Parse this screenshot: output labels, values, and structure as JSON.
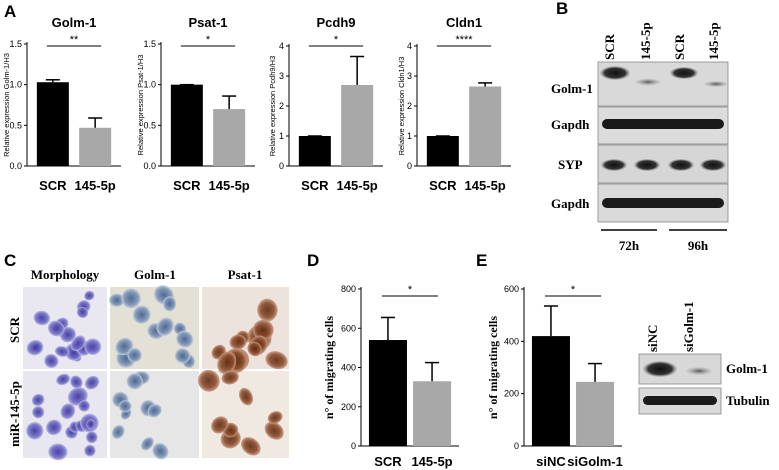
{
  "panel_letters": [
    "A",
    "B",
    "C",
    "D",
    "E"
  ],
  "chart_data": [
    {
      "type": "bar",
      "panel": "A",
      "title": "Golm-1",
      "ylabel": "Relative expression Golm-1/H3",
      "categories": [
        "SCR",
        "145-5p"
      ],
      "values": [
        1.03,
        0.47
      ],
      "errors": [
        0.03,
        0.12
      ],
      "ylim": [
        0,
        1.5
      ],
      "yticks": [
        "0.0",
        "0.5",
        "1.0",
        "1.5"
      ],
      "significance": "**",
      "colors": [
        "#000000",
        "#a8a8a8"
      ]
    },
    {
      "type": "bar",
      "panel": "A",
      "title": "Psat-1",
      "ylabel": "Relative expression Psat-1/H3",
      "categories": [
        "SCR",
        "145-5p"
      ],
      "values": [
        1.0,
        0.7
      ],
      "errors": [
        0.0,
        0.16
      ],
      "ylim": [
        0,
        1.5
      ],
      "yticks": [
        "0.0",
        "0.5",
        "1.0",
        "1.5"
      ],
      "significance": "*",
      "colors": [
        "#000000",
        "#a8a8a8"
      ]
    },
    {
      "type": "bar",
      "panel": "A",
      "title": "Pcdh9",
      "ylabel": "Relative expression Pcdh9/H3",
      "categories": [
        "SCR",
        "145-5p"
      ],
      "values": [
        1.0,
        2.7
      ],
      "errors": [
        0.0,
        0.95
      ],
      "ylim": [
        0,
        4
      ],
      "yticks": [
        "0",
        "1",
        "2",
        "3",
        "4"
      ],
      "significance": "*",
      "colors": [
        "#000000",
        "#a8a8a8"
      ]
    },
    {
      "type": "bar",
      "panel": "A",
      "title": "Cldn1",
      "ylabel": "Relative expression Cldn1/H3",
      "categories": [
        "SCR",
        "145-5p"
      ],
      "values": [
        1.0,
        2.65
      ],
      "errors": [
        0.0,
        0.12
      ],
      "ylim": [
        0,
        4
      ],
      "yticks": [
        "0",
        "1",
        "2",
        "3",
        "4"
      ],
      "significance": "****",
      "colors": [
        "#000000",
        "#a8a8a8"
      ]
    },
    {
      "type": "bar",
      "panel": "D",
      "ylabel": "n° of migrating cells",
      "categories": [
        "SCR",
        "145-5p"
      ],
      "values": [
        540,
        330
      ],
      "errors": [
        115,
        95
      ],
      "ylim": [
        0,
        800
      ],
      "yticks": [
        "0",
        "200",
        "400",
        "600",
        "800"
      ],
      "significance": "*",
      "colors": [
        "#000000",
        "#a8a8a8"
      ]
    },
    {
      "type": "bar",
      "panel": "E",
      "ylabel": "n° of migrating cells",
      "categories": [
        "siNC",
        "siGolm-1"
      ],
      "values": [
        420,
        245
      ],
      "errors": [
        115,
        70
      ],
      "ylim": [
        0,
        600
      ],
      "yticks": [
        "0",
        "200",
        "400",
        "600"
      ],
      "significance": "*",
      "colors": [
        "#000000",
        "#a8a8a8"
      ]
    }
  ],
  "blot_b": {
    "columns": [
      "SCR",
      "145-5p",
      "SCR",
      "145-5p"
    ],
    "rows": [
      "Golm-1",
      "Gapdh",
      "SYP",
      "Gapdh"
    ],
    "timepoints": [
      "72h",
      "96h"
    ]
  },
  "micrographs_c": {
    "columns": [
      "Morphology",
      "Golm-1",
      "Psat-1"
    ],
    "rows": [
      "SCR",
      "miR-145-5p"
    ]
  },
  "blot_e": {
    "columns": [
      "siNC",
      "siGolm-1"
    ],
    "rows": [
      "Golm-1",
      "Tubulin"
    ]
  }
}
